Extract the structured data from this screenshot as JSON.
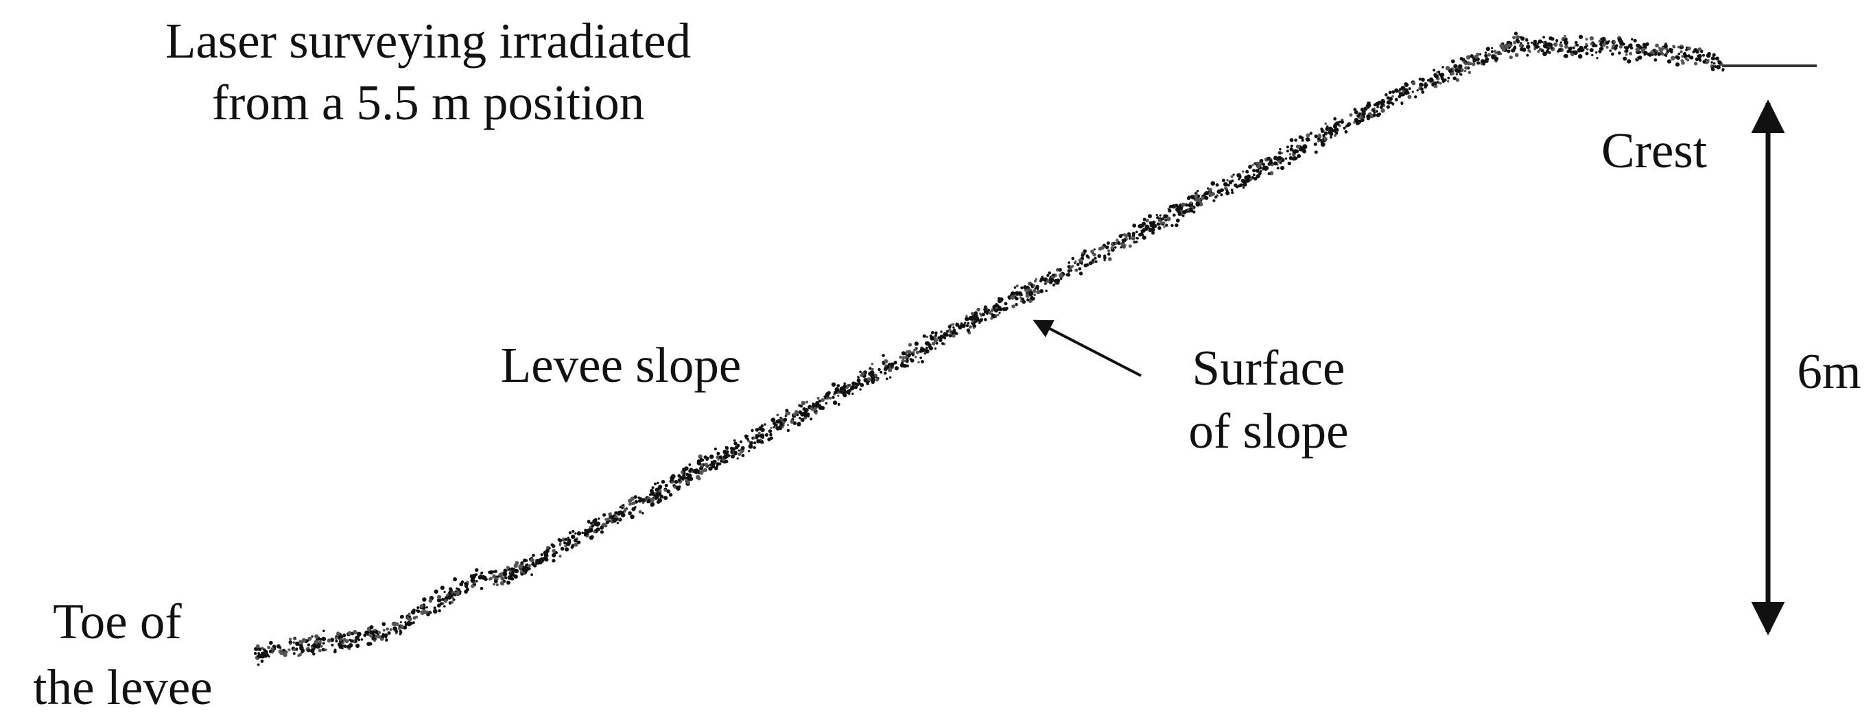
{
  "source_label": {
    "lines": [
      "Laser surveying irradiated",
      "from a 5.5 m position"
    ]
  },
  "labels": {
    "crest": "Crest",
    "height": "6m",
    "levee_slope": "Levee slope",
    "surface": {
      "lines": [
        "Surface",
        "of slope"
      ]
    },
    "toe": {
      "lines": [
        "Toe of",
        "the levee"
      ]
    }
  }
}
